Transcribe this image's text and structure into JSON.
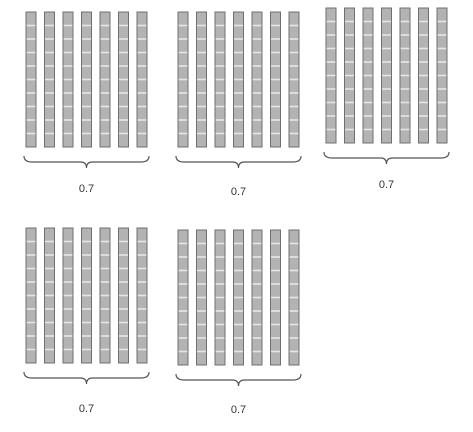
{
  "figure": {
    "groups": [
      {
        "label": "0.7",
        "rods": 7,
        "cells_per_rod": 10
      },
      {
        "label": "0.7",
        "rods": 7,
        "cells_per_rod": 10
      },
      {
        "label": "0.7",
        "rods": 7,
        "cells_per_rod": 10
      },
      {
        "label": "0.7",
        "rods": 7,
        "cells_per_rod": 10
      },
      {
        "label": "0.7",
        "rods": 7,
        "cells_per_rod": 10
      }
    ],
    "colors": {
      "rod_fill": "#b3b3b3",
      "rod_stroke": "#6f6f6f",
      "cell_line": "#e6e6e6",
      "brace": "#555555",
      "label": "#333333"
    }
  }
}
